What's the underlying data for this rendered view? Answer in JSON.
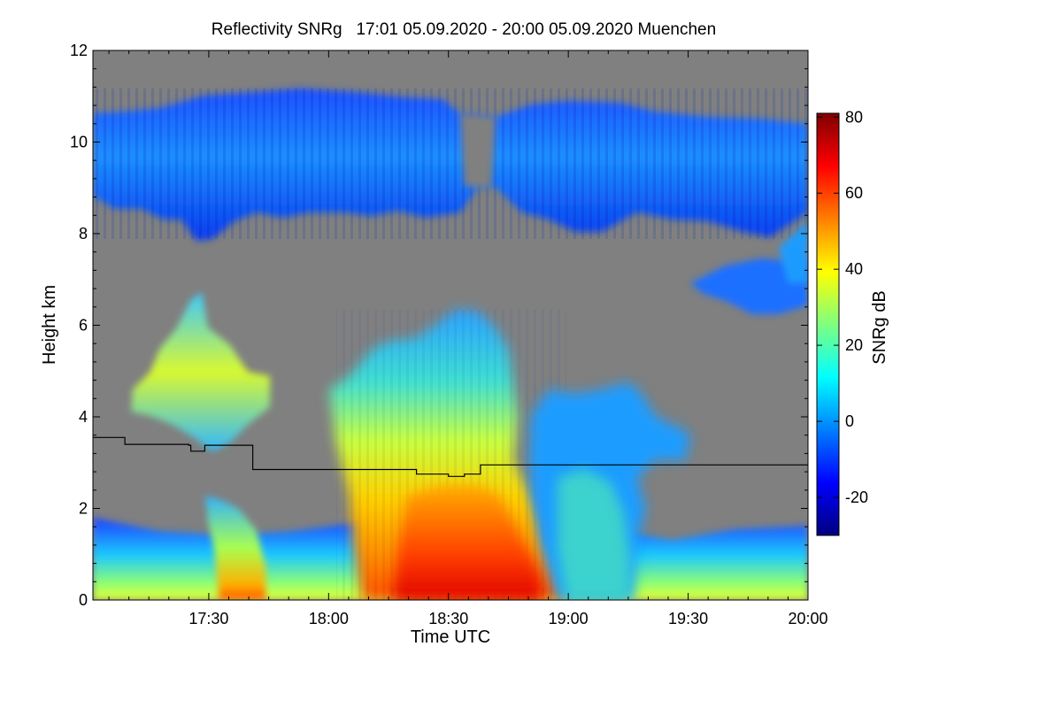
{
  "chart_data": {
    "type": "heatmap",
    "title": "Reflectivity SNRg   17:01 05.09.2020 - 20:00 05.09.2020 Muenchen",
    "xlabel": "Time UTC",
    "ylabel": "Height km",
    "x_range_minutes": [
      1021,
      1200
    ],
    "x_ticks": [
      {
        "minute": 1050,
        "label": "17:30"
      },
      {
        "minute": 1080,
        "label": "18:00"
      },
      {
        "minute": 1110,
        "label": "18:30"
      },
      {
        "minute": 1140,
        "label": "19:00"
      },
      {
        "minute": 1170,
        "label": "19:30"
      },
      {
        "minute": 1200,
        "label": "20:00"
      }
    ],
    "ylim": [
      0,
      12
    ],
    "y_ticks": [
      {
        "value": 0,
        "label": "0"
      },
      {
        "value": 2,
        "label": "2"
      },
      {
        "value": 4,
        "label": "4"
      },
      {
        "value": 6,
        "label": "6"
      },
      {
        "value": 8,
        "label": "8"
      },
      {
        "value": 10,
        "label": "10"
      },
      {
        "value": 12,
        "label": "12"
      }
    ],
    "background_color": "#808080",
    "colorbar": {
      "label": "SNRg dB",
      "range": [
        -30,
        81
      ],
      "ticks": [
        {
          "value": 80,
          "label": "80"
        },
        {
          "value": 60,
          "label": "60"
        },
        {
          "value": 40,
          "label": "40"
        },
        {
          "value": 20,
          "label": "20"
        },
        {
          "value": 0,
          "label": "0"
        },
        {
          "value": -20,
          "label": "-20"
        }
      ],
      "colormap": [
        "#00007f",
        "#0000ff",
        "#007fff",
        "#00ffff",
        "#7fff7f",
        "#ffff00",
        "#ff7f00",
        "#ff0000",
        "#7f0000"
      ]
    },
    "regions": [
      {
        "name": "cirrus-layer",
        "t": [
          1021,
          1200
        ],
        "h": [
          8.2,
          10.8
        ],
        "snr": -8
      },
      {
        "name": "lower-cirrus-east",
        "t": [
          1173,
          1200
        ],
        "h": [
          6.3,
          7.5
        ],
        "snr": -5
      },
      {
        "name": "cell-west",
        "t": [
          1033,
          1046
        ],
        "h": [
          3.2,
          6.7
        ],
        "snr": 25
      },
      {
        "name": "main-convection",
        "t": [
          1086,
          1134
        ],
        "h": [
          0,
          6.3
        ],
        "snr": 40
      },
      {
        "name": "core-rain",
        "t": [
          1104,
          1128
        ],
        "h": [
          0,
          2.2
        ],
        "snr": 65
      },
      {
        "name": "secondary-cells",
        "t": [
          1134,
          1160
        ],
        "h": [
          0,
          4.8
        ],
        "snr": 10
      },
      {
        "name": "rain-shaft-1730",
        "t": [
          1047,
          1055
        ],
        "h": [
          0,
          2.2
        ],
        "snr": 45
      },
      {
        "name": "boundary-layer",
        "t": [
          1021,
          1200
        ],
        "h": [
          0,
          1.4
        ],
        "snr": 10
      }
    ],
    "overlay_line": {
      "name": "melting-layer-height",
      "color": "#000000",
      "points": [
        [
          1021,
          3.55
        ],
        [
          1029,
          3.55
        ],
        [
          1029,
          3.4
        ],
        [
          1045,
          3.4
        ],
        [
          1045,
          3.38
        ],
        [
          1045.5,
          3.38
        ],
        [
          1045.5,
          3.25
        ],
        [
          1049,
          3.25
        ],
        [
          1049,
          3.38
        ],
        [
          1061,
          3.38
        ],
        [
          1061,
          2.85
        ],
        [
          1102,
          2.85
        ],
        [
          1102,
          2.75
        ],
        [
          1110,
          2.75
        ],
        [
          1110,
          2.7
        ],
        [
          1114,
          2.7
        ],
        [
          1114,
          2.75
        ],
        [
          1118,
          2.75
        ],
        [
          1118,
          2.95
        ],
        [
          1200,
          2.95
        ]
      ]
    }
  }
}
